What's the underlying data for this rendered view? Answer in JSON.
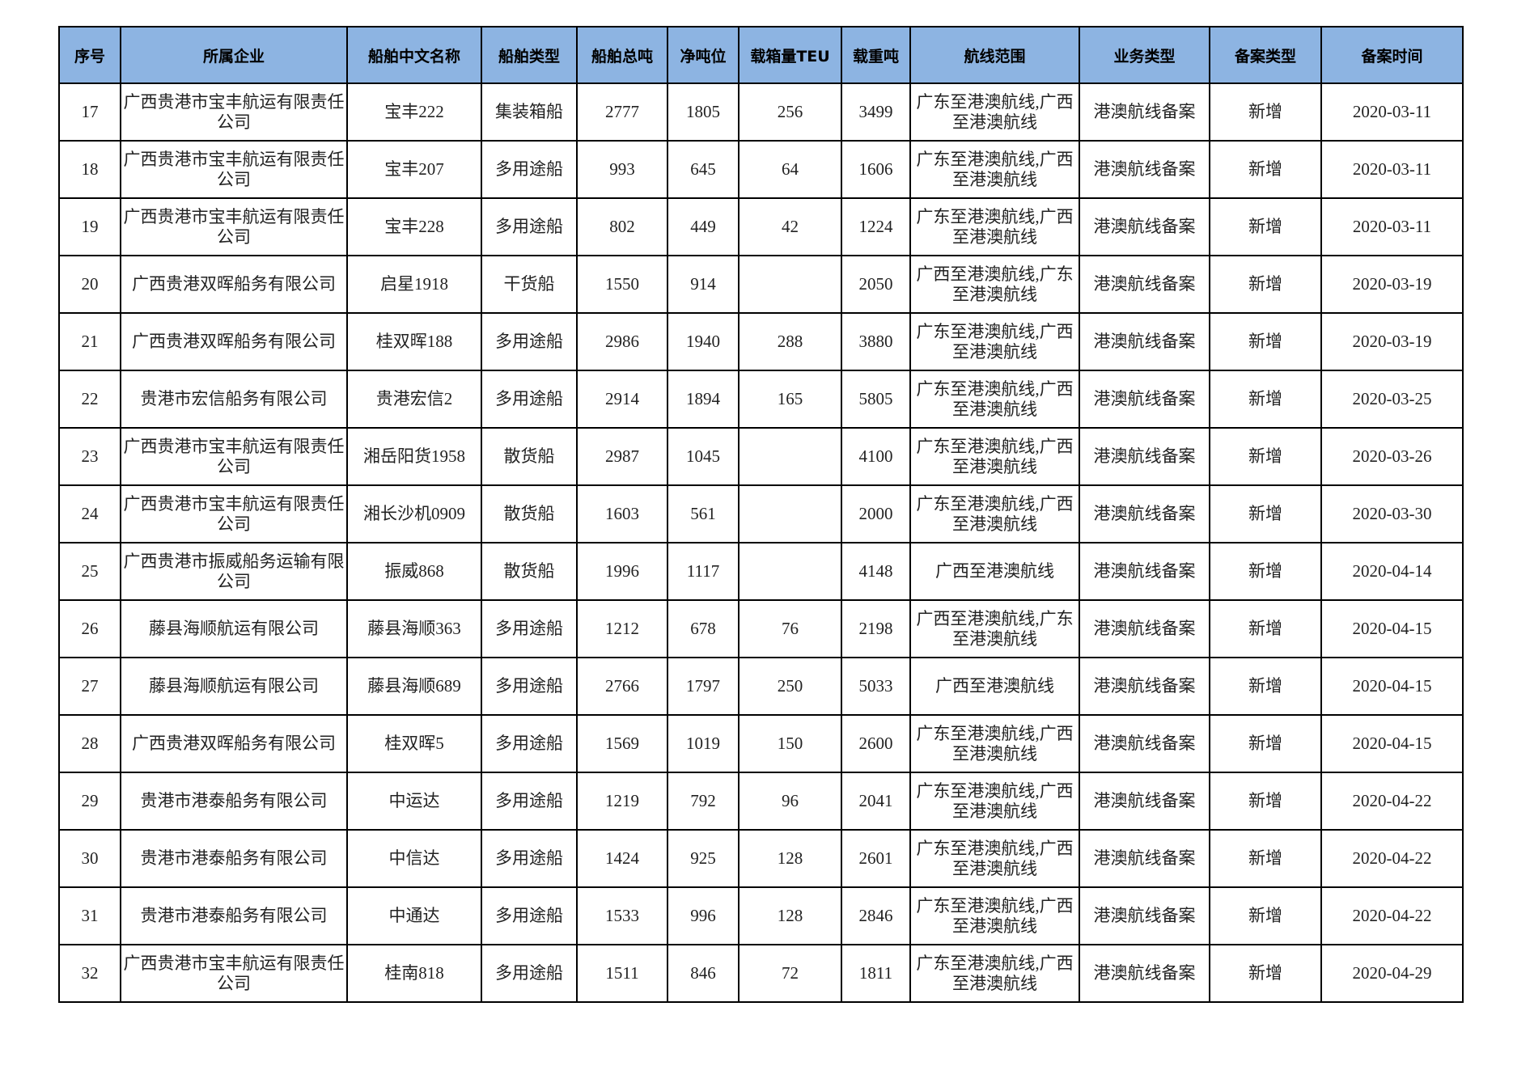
{
  "table": {
    "headers": [
      "序号",
      "所属企业",
      "船舶中文名称",
      "船舶类型",
      "船舶总吨",
      "净吨位",
      "载箱量TEU",
      "载重吨",
      "航线范围",
      "业务类型",
      "备案类型",
      "备案时间"
    ],
    "rows": [
      [
        "17",
        "广西贵港市宝丰航运有限责任公司",
        "宝丰222",
        "集装箱船",
        "2777",
        "1805",
        "256",
        "3499",
        "广东至港澳航线,广西至港澳航线",
        "港澳航线备案",
        "新增",
        "2020-03-11"
      ],
      [
        "18",
        "广西贵港市宝丰航运有限责任公司",
        "宝丰207",
        "多用途船",
        "993",
        "645",
        "64",
        "1606",
        "广东至港澳航线,广西至港澳航线",
        "港澳航线备案",
        "新增",
        "2020-03-11"
      ],
      [
        "19",
        "广西贵港市宝丰航运有限责任公司",
        "宝丰228",
        "多用途船",
        "802",
        "449",
        "42",
        "1224",
        "广东至港澳航线,广西至港澳航线",
        "港澳航线备案",
        "新增",
        "2020-03-11"
      ],
      [
        "20",
        "广西贵港双晖船务有限公司",
        "启星1918",
        "干货船",
        "1550",
        "914",
        "",
        "2050",
        "广西至港澳航线,广东至港澳航线",
        "港澳航线备案",
        "新增",
        "2020-03-19"
      ],
      [
        "21",
        "广西贵港双晖船务有限公司",
        "桂双晖188",
        "多用途船",
        "2986",
        "1940",
        "288",
        "3880",
        "广东至港澳航线,广西至港澳航线",
        "港澳航线备案",
        "新增",
        "2020-03-19"
      ],
      [
        "22",
        "贵港市宏信船务有限公司",
        "贵港宏信2",
        "多用途船",
        "2914",
        "1894",
        "165",
        "5805",
        "广东至港澳航线,广西至港澳航线",
        "港澳航线备案",
        "新增",
        "2020-03-25"
      ],
      [
        "23",
        "广西贵港市宝丰航运有限责任公司",
        "湘岳阳货1958",
        "散货船",
        "2987",
        "1045",
        "",
        "4100",
        "广东至港澳航线,广西至港澳航线",
        "港澳航线备案",
        "新增",
        "2020-03-26"
      ],
      [
        "24",
        "广西贵港市宝丰航运有限责任公司",
        "湘长沙机0909",
        "散货船",
        "1603",
        "561",
        "",
        "2000",
        "广东至港澳航线,广西至港澳航线",
        "港澳航线备案",
        "新增",
        "2020-03-30"
      ],
      [
        "25",
        "广西贵港市振威船务运输有限公司",
        "振威868",
        "散货船",
        "1996",
        "1117",
        "",
        "4148",
        "广西至港澳航线",
        "港澳航线备案",
        "新增",
        "2020-04-14"
      ],
      [
        "26",
        "藤县海顺航运有限公司",
        "藤县海顺363",
        "多用途船",
        "1212",
        "678",
        "76",
        "2198",
        "广西至港澳航线,广东至港澳航线",
        "港澳航线备案",
        "新增",
        "2020-04-15"
      ],
      [
        "27",
        "藤县海顺航运有限公司",
        "藤县海顺689",
        "多用途船",
        "2766",
        "1797",
        "250",
        "5033",
        "广西至港澳航线",
        "港澳航线备案",
        "新增",
        "2020-04-15"
      ],
      [
        "28",
        "广西贵港双晖船务有限公司",
        "桂双晖5",
        "多用途船",
        "1569",
        "1019",
        "150",
        "2600",
        "广东至港澳航线,广西至港澳航线",
        "港澳航线备案",
        "新增",
        "2020-04-15"
      ],
      [
        "29",
        "贵港市港泰船务有限公司",
        "中运达",
        "多用途船",
        "1219",
        "792",
        "96",
        "2041",
        "广东至港澳航线,广西至港澳航线",
        "港澳航线备案",
        "新增",
        "2020-04-22"
      ],
      [
        "30",
        "贵港市港泰船务有限公司",
        "中信达",
        "多用途船",
        "1424",
        "925",
        "128",
        "2601",
        "广东至港澳航线,广西至港澳航线",
        "港澳航线备案",
        "新增",
        "2020-04-22"
      ],
      [
        "31",
        "贵港市港泰船务有限公司",
        "中通达",
        "多用途船",
        "1533",
        "996",
        "128",
        "2846",
        "广东至港澳航线,广西至港澳航线",
        "港澳航线备案",
        "新增",
        "2020-04-22"
      ],
      [
        "32",
        "广西贵港市宝丰航运有限责任公司",
        "桂南818",
        "多用途船",
        "1511",
        "846",
        "72",
        "1811",
        "广东至港澳航线,广西至港澳航线",
        "港澳航线备案",
        "新增",
        "2020-04-29"
      ]
    ]
  }
}
